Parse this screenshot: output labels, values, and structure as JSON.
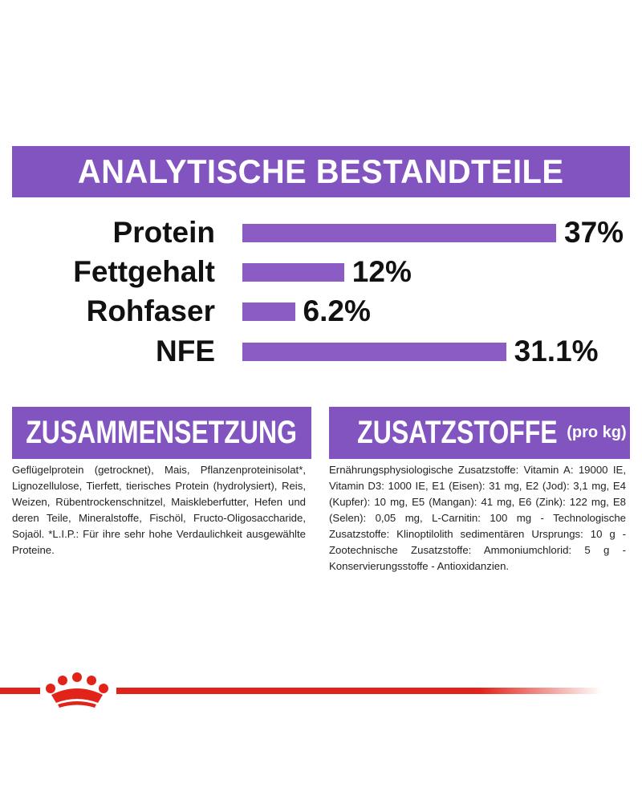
{
  "chart_data": {
    "type": "bar",
    "orientation": "horizontal",
    "title": "ANALYTISCHE BESTANDTEILE",
    "categories": [
      "Protein",
      "Fettgehalt",
      "Rohfaser",
      "NFE"
    ],
    "values": [
      37,
      12,
      6.2,
      31.1
    ],
    "value_labels": [
      "37%",
      "12%",
      "6.2%",
      "31.1%"
    ],
    "color": "#8a5cc4"
  },
  "sections": [
    {
      "title": "ZUSAMMENSETZUNG",
      "text": "Geflügelprotein (getrocknet), Mais, Pflanzenproteinisolat*, Lignozellulose, Tierfett, tierisches Protein (hydrolysiert), Reis, Weizen, Rübentrockenschnitzel, Maiskleberfutter, Hefen und deren Teile, Mineralstoffe, Fischöl, Fructo-Oligosaccharide, Sojaöl. *L.I.P.: Für ihre sehr hohe Verdaulichkeit ausgewählte Proteine."
    },
    {
      "title": "ZUSATZSTOFFE",
      "suffix": "(pro kg)",
      "text": "Ernährungsphysiologische Zusatzstoffe: Vitamin A: 19000 IE, Vitamin D3: 1000 IE, E1 (Eisen): 31 mg, E2 (Jod): 3,1 mg, E4 (Kupfer): 10 mg, E5 (Mangan): 41 mg, E6 (Zink): 122 mg, E8 (Selen): 0,05 mg, L-Carnitin: 100 mg - Technologische Zusatzstoffe: Klinoptilolith sedimentären Ursprungs: 10 g - Zootechnische Zusatzstoffe: Ammoniumchlorid: 5 g - Konservierungsstoffe - Antioxidanzien."
    }
  ]
}
